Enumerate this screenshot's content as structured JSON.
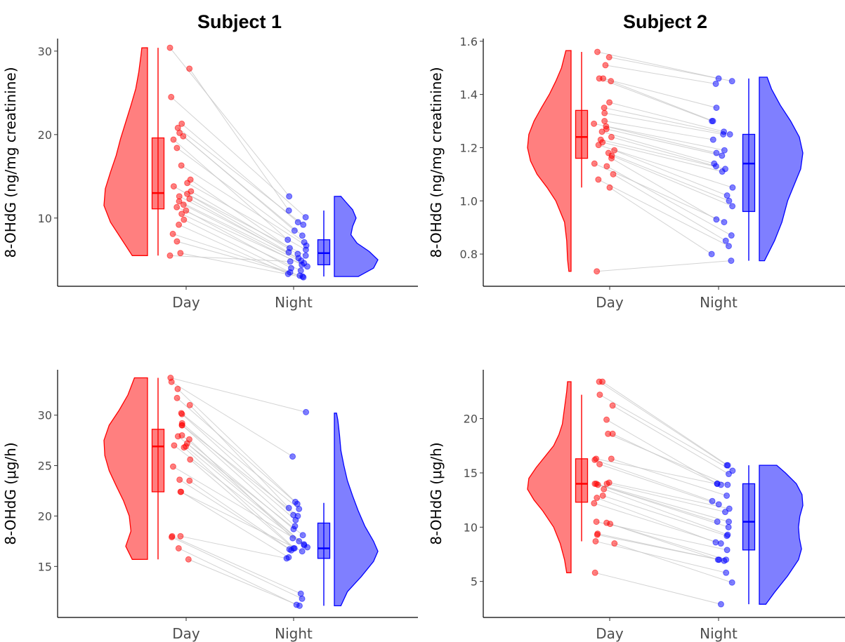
{
  "titles": [
    "Subject 1",
    "Subject 2"
  ],
  "colors": {
    "day": "#ff0000",
    "night": "#0000ff",
    "pair_line": "#c8c8c8",
    "axis": "#000000"
  },
  "chart_data": [
    {
      "type": "raincloud",
      "subject": "Subject 1",
      "ylabel": "8-OHdG (ng/mg creatinine)",
      "categories": [
        "Day",
        "Night"
      ],
      "ylim": [
        2.5,
        31.5
      ],
      "yticks": [
        10,
        20,
        30
      ],
      "grid": false,
      "box": {
        "Day": {
          "min": 5.5,
          "q1": 11.1,
          "median": 13.0,
          "q3": 19.6,
          "max": 30.4
        },
        "Night": {
          "min": 3.0,
          "q1": 4.4,
          "median": 5.8,
          "q3": 7.4,
          "max": 10.9
        }
      },
      "density": {
        "Day": {
          "range": [
            5.5,
            30.4
          ],
          "ys": [
            5.5,
            7.5,
            9.5,
            11.5,
            13.5,
            15.5,
            17.5,
            19.5,
            21.5,
            23.5,
            25.5,
            27.5,
            29.5,
            30.4
          ],
          "d": [
            0.35,
            0.6,
            0.85,
            1.0,
            0.97,
            0.85,
            0.72,
            0.62,
            0.5,
            0.38,
            0.27,
            0.2,
            0.15,
            0.13
          ]
        },
        "Night": {
          "range": [
            3.0,
            12.6
          ],
          "ys": [
            3.0,
            4.0,
            5.0,
            6.0,
            7.0,
            8.0,
            9.0,
            10.0,
            11.0,
            12.0,
            12.6
          ],
          "d": [
            0.55,
            0.9,
            1.0,
            0.8,
            0.52,
            0.38,
            0.42,
            0.5,
            0.42,
            0.25,
            0.15
          ]
        }
      },
      "day": [
        30.4,
        27.9,
        24.5,
        21.3,
        20.8,
        20.2,
        19.8,
        19.4,
        18.4,
        16.3,
        14.6,
        14.2,
        13.8,
        13.2,
        12.9,
        12.6,
        12.3,
        12.0,
        11.6,
        11.3,
        10.9,
        10.5,
        9.8,
        9.2,
        8.1,
        7.2,
        5.8,
        5.5
      ],
      "night": [
        12.6,
        10.9,
        10.1,
        9.5,
        9.2,
        8.5,
        7.9,
        7.4,
        7.1,
        6.7,
        6.4,
        6.2,
        5.9,
        5.7,
        5.5,
        5.2,
        4.9,
        4.6,
        4.4,
        4.2,
        4.0,
        3.7,
        3.5,
        3.3,
        3.1,
        3.0,
        2.9,
        4.8
      ]
    },
    {
      "type": "raincloud",
      "subject": "Subject 2",
      "ylabel": "8-OHdG (ng/mg creatinine)",
      "categories": [
        "Day",
        "Night"
      ],
      "ylim": [
        0.7,
        1.61
      ],
      "yticks": [
        0.8,
        1.0,
        1.2,
        1.4,
        1.6
      ],
      "grid": false,
      "box": {
        "Day": {
          "min": 1.05,
          "q1": 1.16,
          "median": 1.24,
          "q3": 1.34,
          "max": 1.56
        },
        "Night": {
          "min": 0.775,
          "q1": 0.96,
          "median": 1.14,
          "q3": 1.25,
          "max": 1.46
        }
      },
      "density": {
        "Day": {
          "range": [
            0.735,
            1.565
          ],
          "ys": [
            0.735,
            0.78,
            0.85,
            0.92,
            1.0,
            1.05,
            1.1,
            1.15,
            1.2,
            1.25,
            1.3,
            1.35,
            1.4,
            1.45,
            1.5,
            1.565
          ],
          "d": [
            0.05,
            0.08,
            0.1,
            0.15,
            0.35,
            0.55,
            0.78,
            0.93,
            1.0,
            0.97,
            0.85,
            0.68,
            0.5,
            0.35,
            0.22,
            0.12
          ]
        },
        "Night": {
          "range": [
            0.775,
            1.465
          ],
          "ys": [
            0.775,
            0.85,
            0.92,
            1.0,
            1.06,
            1.12,
            1.18,
            1.24,
            1.3,
            1.36,
            1.42,
            1.465
          ],
          "d": [
            0.12,
            0.35,
            0.52,
            0.65,
            0.8,
            0.95,
            1.0,
            0.92,
            0.72,
            0.48,
            0.28,
            0.18
          ]
        }
      },
      "day": [
        1.56,
        1.54,
        1.51,
        1.46,
        1.46,
        1.45,
        1.37,
        1.35,
        1.33,
        1.3,
        1.29,
        1.28,
        1.27,
        1.26,
        1.24,
        1.23,
        1.22,
        1.21,
        1.19,
        1.18,
        1.17,
        1.16,
        1.14,
        1.13,
        1.1,
        1.08,
        1.05,
        0.735
      ],
      "night": [
        1.46,
        1.45,
        1.44,
        1.35,
        1.3,
        1.3,
        1.26,
        1.25,
        1.25,
        1.23,
        1.19,
        1.18,
        1.17,
        1.14,
        1.13,
        1.12,
        1.11,
        1.05,
        1.02,
        1.0,
        0.98,
        0.93,
        0.92,
        0.87,
        0.85,
        0.83,
        0.8,
        0.775
      ]
    },
    {
      "type": "raincloud",
      "subject": "Subject 1",
      "ylabel": "8-OHdG (μg/h)",
      "categories": [
        "Day",
        "Night"
      ],
      "ylim": [
        10.5,
        34.5
      ],
      "yticks": [
        15,
        20,
        25,
        30
      ],
      "grid": false,
      "box": {
        "Day": {
          "min": 15.7,
          "q1": 22.4,
          "median": 26.9,
          "q3": 28.6,
          "max": 33.7
        },
        "Night": {
          "min": 11.1,
          "q1": 15.8,
          "median": 16.8,
          "q3": 19.3,
          "max": 21.3
        }
      },
      "density": {
        "Day": {
          "range": [
            15.7,
            33.7
          ],
          "ys": [
            15.7,
            17.0,
            18.5,
            20.0,
            21.5,
            23.0,
            24.5,
            26.0,
            27.5,
            29.0,
            30.5,
            32.0,
            33.7
          ],
          "d": [
            0.35,
            0.5,
            0.38,
            0.42,
            0.55,
            0.72,
            0.88,
            0.98,
            1.0,
            0.88,
            0.65,
            0.45,
            0.3
          ]
        },
        "Night": {
          "range": [
            11.1,
            30.2
          ],
          "ys": [
            11.1,
            12.5,
            14.0,
            15.5,
            16.5,
            17.5,
            19.0,
            20.5,
            22.0,
            23.5,
            25.0,
            26.5,
            28.0,
            29.5,
            30.2
          ],
          "d": [
            0.15,
            0.3,
            0.62,
            0.9,
            1.0,
            0.9,
            0.7,
            0.55,
            0.42,
            0.3,
            0.22,
            0.15,
            0.12,
            0.08,
            0.05
          ]
        }
      },
      "day": [
        33.7,
        33.3,
        32.6,
        31.7,
        31.0,
        30.2,
        30.1,
        29.0,
        29.0,
        28.0,
        27.9,
        27.6,
        27.2,
        27.0,
        26.9,
        26.8,
        25.6,
        23.6,
        23.5,
        22.4,
        22.4,
        18.0,
        18.0,
        17.9,
        16.8,
        15.7,
        29.2,
        24.9
      ],
      "night": [
        30.3,
        25.9,
        21.4,
        21.2,
        20.8,
        20.7,
        20.1,
        20.0,
        19.0,
        18.7,
        18.1,
        17.8,
        17.2,
        17.1,
        16.9,
        16.8,
        16.8,
        16.7,
        16.6,
        16.5,
        15.9,
        15.8,
        12.3,
        11.8,
        11.2,
        11.1,
        19.6,
        17.5
      ]
    },
    {
      "type": "raincloud",
      "subject": "Subject 2",
      "ylabel": "8-OHdG (μg/h)",
      "categories": [
        "Day",
        "Night"
      ],
      "ylim": [
        2.2,
        24.5
      ],
      "yticks": [
        5,
        10,
        15,
        20
      ],
      "grid": false,
      "box": {
        "Day": {
          "min": 8.7,
          "q1": 12.3,
          "median": 14.0,
          "q3": 16.3,
          "max": 22.2
        },
        "Night": {
          "min": 2.9,
          "q1": 7.9,
          "median": 10.5,
          "q3": 14.0,
          "max": 15.7
        }
      },
      "density": {
        "Day": {
          "range": [
            5.8,
            23.4
          ],
          "ys": [
            5.8,
            7.0,
            8.5,
            10.0,
            11.5,
            12.5,
            13.5,
            14.5,
            15.5,
            16.5,
            17.5,
            18.5,
            19.5,
            21.0,
            22.5,
            23.4
          ],
          "d": [
            0.1,
            0.15,
            0.25,
            0.4,
            0.65,
            0.85,
            1.0,
            0.97,
            0.8,
            0.6,
            0.4,
            0.28,
            0.2,
            0.15,
            0.1,
            0.08
          ]
        },
        "Night": {
          "range": [
            2.9,
            15.7
          ],
          "ys": [
            2.9,
            4.0,
            5.5,
            7.0,
            8.0,
            9.0,
            10.0,
            11.0,
            12.0,
            13.0,
            14.0,
            15.0,
            15.7
          ],
          "d": [
            0.15,
            0.35,
            0.65,
            0.9,
            0.97,
            0.92,
            0.9,
            0.93,
            1.0,
            0.98,
            0.85,
            0.6,
            0.4
          ]
        }
      },
      "day": [
        23.4,
        23.4,
        22.2,
        21.2,
        19.9,
        18.6,
        18.6,
        16.3,
        16.3,
        16.2,
        15.8,
        14.1,
        14.0,
        14.0,
        14.0,
        13.9,
        13.5,
        12.9,
        12.7,
        12.2,
        10.5,
        10.4,
        10.3,
        9.4,
        9.3,
        8.7,
        8.5,
        5.8
      ],
      "night": [
        15.7,
        15.7,
        15.2,
        14.9,
        14.0,
        14.0,
        13.9,
        13.9,
        12.9,
        12.4,
        12.1,
        11.7,
        11.4,
        10.5,
        10.5,
        10.0,
        9.3,
        9.2,
        8.6,
        8.5,
        7.9,
        7.0,
        7.0,
        7.0,
        6.9,
        5.8,
        4.9,
        2.9
      ]
    }
  ]
}
